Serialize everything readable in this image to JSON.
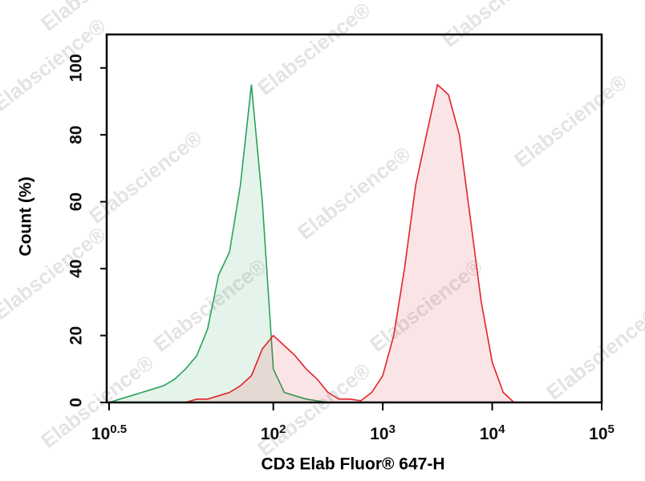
{
  "chart_data": {
    "type": "histogram-overlay",
    "x_label": "CD3 Elab Fluor® 647-H",
    "y_label": "Count (%)",
    "watermark": "Elabscience®",
    "log_x": true,
    "x": [
      3.16,
      3.98,
      5.01,
      6.31,
      7.94,
      10,
      12.6,
      15.8,
      20,
      25.1,
      31.6,
      39.8,
      50.1,
      63.1,
      79.4,
      100,
      126,
      158,
      200,
      251,
      316,
      398,
      501,
      631,
      794,
      1000,
      1260,
      1580,
      2000,
      2510,
      3160,
      3980,
      5010,
      6310,
      7940,
      10000,
      12600,
      15800,
      20000,
      25100
    ],
    "series": [
      {
        "color": "#2aa25a",
        "values": [
          0,
          1,
          2,
          3,
          4,
          5,
          7,
          10,
          14,
          22,
          38,
          45,
          65,
          95,
          60,
          10,
          3,
          2,
          1,
          0.5,
          0,
          0,
          0,
          0,
          0,
          0,
          0,
          0,
          0,
          0,
          0,
          0,
          0,
          0,
          0,
          0,
          0,
          0,
          0,
          0
        ]
      },
      {
        "color": "#e2242a",
        "values": [
          0,
          0,
          0,
          0,
          0,
          0,
          0,
          0,
          1,
          1,
          2,
          3,
          5,
          8,
          16,
          20,
          17,
          14,
          10,
          7,
          3,
          1,
          1,
          0.5,
          3,
          8,
          20,
          40,
          65,
          80,
          95,
          92,
          80,
          55,
          30,
          12,
          3,
          0,
          0,
          0
        ]
      }
    ],
    "xlim": [
      3.1623,
      100000
    ],
    "xticks": [
      {
        "value": 3.1623,
        "label": "10",
        "exponent": "0.5"
      },
      {
        "value": 100,
        "label": "10",
        "exponent": "2"
      },
      {
        "value": 1000,
        "label": "10",
        "exponent": "3"
      },
      {
        "value": 10000,
        "label": "10",
        "exponent": "4"
      },
      {
        "value": 100000,
        "label": "10",
        "exponent": "5"
      }
    ],
    "ylim": [
      0,
      110
    ],
    "yticks": [
      0,
      20,
      40,
      60,
      80,
      100
    ]
  }
}
